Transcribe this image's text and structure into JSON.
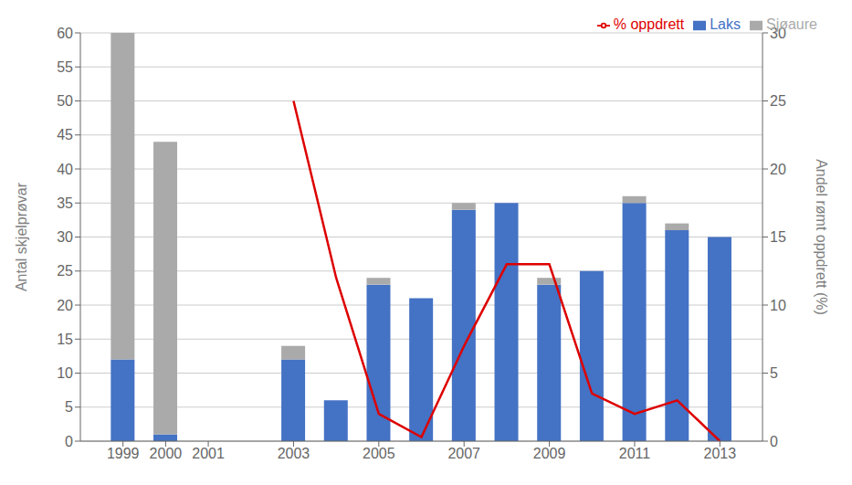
{
  "chart_data": {
    "type": "bar",
    "stacked": true,
    "grid": true,
    "legend": "upper right",
    "ylabel": "Antal skjelprøvar",
    "y2label": "Andel rømt oppdrett (%)",
    "x": [
      1999,
      2000,
      2003,
      2004,
      2005,
      2006,
      2007,
      2008,
      2009,
      2010,
      2011,
      2012,
      2013
    ],
    "xlim": [
      1998.0,
      2014.0
    ],
    "xticks": [
      1999,
      2000,
      2001,
      2003,
      2005,
      2007,
      2009,
      2011,
      2013
    ],
    "ylim": [
      0,
      60
    ],
    "yticks": [
      0,
      5,
      10,
      15,
      20,
      25,
      30,
      35,
      40,
      45,
      50,
      55,
      60
    ],
    "y2lim": [
      0,
      30
    ],
    "y2ticks": [
      0,
      5,
      10,
      15,
      20,
      25,
      30
    ],
    "series": [
      {
        "name": "Laks",
        "color": "#4472C4",
        "values": [
          12,
          1,
          12,
          6,
          23,
          21,
          34,
          35,
          23,
          25,
          35,
          31,
          30
        ]
      },
      {
        "name": "Sjøaure",
        "color": "#AAAAAA",
        "values": [
          48,
          43,
          2,
          0,
          1,
          0,
          1,
          0,
          1,
          0,
          1,
          1,
          0
        ]
      },
      {
        "name": "% oppdrett",
        "type": "line",
        "axis": "y2",
        "color": "#DD0000",
        "values": [
          null,
          null,
          25,
          12,
          2,
          0.3,
          7,
          13,
          13,
          3.5,
          2,
          3,
          0
        ]
      }
    ]
  }
}
